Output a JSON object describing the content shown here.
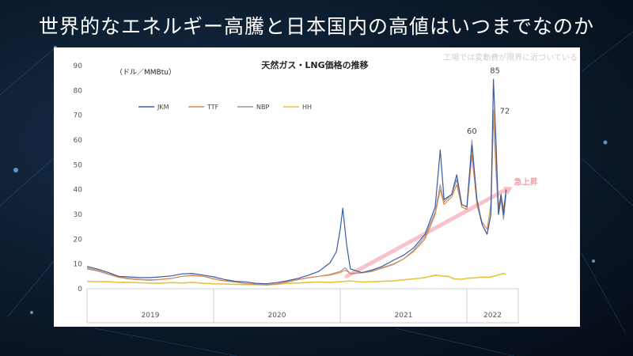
{
  "slide": {
    "title": "世界的なエネルギー高騰と日本国内の高値はいつまでなのか",
    "note": "工場では変動費が限界に近づいている"
  },
  "chart_data": {
    "type": "line",
    "title": "天然ガス・LNG価格の推移",
    "ylabel": "（ドル／MMBtu）",
    "ylim": [
      0,
      90
    ],
    "yticks": [
      0,
      10,
      20,
      30,
      40,
      50,
      60,
      70,
      80,
      90
    ],
    "xlim": [
      2019.0,
      2022.5
    ],
    "years": [
      {
        "label": "2019",
        "start": 2019.0,
        "end": 2020.0
      },
      {
        "label": "2020",
        "start": 2020.0,
        "end": 2021.0
      },
      {
        "label": "2021",
        "start": 2021.0,
        "end": 2022.0
      },
      {
        "label": "2022",
        "start": 2022.0,
        "end": 2022.25
      }
    ],
    "grid": false,
    "legend": "top-left",
    "series": [
      {
        "name": "JKM",
        "color": "#3a5ba8",
        "points": [
          [
            2019.0,
            9.0
          ],
          [
            2019.08,
            8.0
          ],
          [
            2019.17,
            6.5
          ],
          [
            2019.25,
            5.0
          ],
          [
            2019.33,
            4.8
          ],
          [
            2019.42,
            4.5
          ],
          [
            2019.5,
            4.5
          ],
          [
            2019.58,
            4.8
          ],
          [
            2019.67,
            5.2
          ],
          [
            2019.75,
            6.0
          ],
          [
            2019.83,
            6.2
          ],
          [
            2019.92,
            5.5
          ],
          [
            2020.0,
            4.8
          ],
          [
            2020.08,
            3.8
          ],
          [
            2020.17,
            3.0
          ],
          [
            2020.25,
            2.8
          ],
          [
            2020.33,
            2.2
          ],
          [
            2020.42,
            2.0
          ],
          [
            2020.5,
            2.5
          ],
          [
            2020.58,
            3.2
          ],
          [
            2020.67,
            4.2
          ],
          [
            2020.75,
            5.5
          ],
          [
            2020.83,
            7.0
          ],
          [
            2020.92,
            10.5
          ],
          [
            2020.97,
            15.0
          ],
          [
            2021.0,
            24.0
          ],
          [
            2021.02,
            32.5
          ],
          [
            2021.05,
            18.0
          ],
          [
            2021.08,
            8.0
          ],
          [
            2021.17,
            6.5
          ],
          [
            2021.25,
            7.5
          ],
          [
            2021.33,
            9.0
          ],
          [
            2021.42,
            11.5
          ],
          [
            2021.5,
            13.5
          ],
          [
            2021.58,
            16.5
          ],
          [
            2021.67,
            22.0
          ],
          [
            2021.75,
            33.0
          ],
          [
            2021.79,
            56.0
          ],
          [
            2021.82,
            36.0
          ],
          [
            2021.88,
            38.0
          ],
          [
            2021.92,
            46.0
          ],
          [
            2021.96,
            34.0
          ],
          [
            2022.0,
            33.0
          ],
          [
            2022.04,
            58.0
          ],
          [
            2022.08,
            36.0
          ],
          [
            2022.12,
            26.0
          ],
          [
            2022.16,
            22.0
          ],
          [
            2022.19,
            30.0
          ],
          [
            2022.21,
            84.5
          ],
          [
            2022.23,
            60.0
          ],
          [
            2022.25,
            30.0
          ],
          [
            2022.27,
            38.0
          ],
          [
            2022.29,
            30.0
          ],
          [
            2022.31,
            40.0
          ]
        ]
      },
      {
        "name": "TTF",
        "color": "#e08c48",
        "points": [
          [
            2019.0,
            8.5
          ],
          [
            2019.08,
            7.5
          ],
          [
            2019.17,
            6.0
          ],
          [
            2019.25,
            4.8
          ],
          [
            2019.33,
            4.2
          ],
          [
            2019.42,
            3.8
          ],
          [
            2019.5,
            3.6
          ],
          [
            2019.58,
            3.8
          ],
          [
            2019.67,
            4.2
          ],
          [
            2019.75,
            5.0
          ],
          [
            2019.83,
            5.3
          ],
          [
            2019.92,
            5.0
          ],
          [
            2020.0,
            4.0
          ],
          [
            2020.08,
            3.3
          ],
          [
            2020.17,
            2.8
          ],
          [
            2020.25,
            2.2
          ],
          [
            2020.33,
            1.8
          ],
          [
            2020.42,
            1.6
          ],
          [
            2020.5,
            2.0
          ],
          [
            2020.58,
            2.8
          ],
          [
            2020.67,
            3.8
          ],
          [
            2020.75,
            4.5
          ],
          [
            2020.83,
            5.0
          ],
          [
            2020.92,
            5.5
          ],
          [
            2021.0,
            6.5
          ],
          [
            2021.04,
            7.5
          ],
          [
            2021.08,
            6.2
          ],
          [
            2021.17,
            6.5
          ],
          [
            2021.25,
            7.0
          ],
          [
            2021.33,
            8.5
          ],
          [
            2021.42,
            10.0
          ],
          [
            2021.5,
            12.0
          ],
          [
            2021.58,
            15.0
          ],
          [
            2021.67,
            20.0
          ],
          [
            2021.75,
            30.0
          ],
          [
            2021.79,
            40.0
          ],
          [
            2021.82,
            34.0
          ],
          [
            2021.88,
            37.0
          ],
          [
            2021.92,
            42.0
          ],
          [
            2021.96,
            33.0
          ],
          [
            2022.0,
            32.0
          ],
          [
            2022.04,
            54.0
          ],
          [
            2022.08,
            34.0
          ],
          [
            2022.12,
            27.0
          ],
          [
            2022.16,
            24.0
          ],
          [
            2022.19,
            34.0
          ],
          [
            2022.21,
            72.0
          ],
          [
            2022.23,
            52.0
          ],
          [
            2022.25,
            33.0
          ],
          [
            2022.27,
            38.0
          ],
          [
            2022.29,
            32.0
          ],
          [
            2022.31,
            40.0
          ]
        ]
      },
      {
        "name": "NBP",
        "color": "#9b9b9b",
        "points": [
          [
            2019.0,
            8.0
          ],
          [
            2019.08,
            7.2
          ],
          [
            2019.17,
            5.8
          ],
          [
            2019.25,
            4.6
          ],
          [
            2019.33,
            4.0
          ],
          [
            2019.42,
            3.6
          ],
          [
            2019.5,
            3.4
          ],
          [
            2019.58,
            3.7
          ],
          [
            2019.67,
            4.2
          ],
          [
            2019.75,
            5.0
          ],
          [
            2019.83,
            5.5
          ],
          [
            2019.92,
            5.0
          ],
          [
            2020.0,
            4.0
          ],
          [
            2020.08,
            3.2
          ],
          [
            2020.17,
            2.7
          ],
          [
            2020.25,
            2.1
          ],
          [
            2020.33,
            1.7
          ],
          [
            2020.42,
            1.5
          ],
          [
            2020.5,
            1.9
          ],
          [
            2020.58,
            2.7
          ],
          [
            2020.67,
            3.7
          ],
          [
            2020.75,
            4.4
          ],
          [
            2020.83,
            5.0
          ],
          [
            2020.92,
            5.8
          ],
          [
            2021.0,
            7.0
          ],
          [
            2021.04,
            8.5
          ],
          [
            2021.08,
            6.0
          ],
          [
            2021.17,
            6.4
          ],
          [
            2021.25,
            7.0
          ],
          [
            2021.33,
            8.3
          ],
          [
            2021.42,
            9.8
          ],
          [
            2021.5,
            12.0
          ],
          [
            2021.58,
            15.5
          ],
          [
            2021.67,
            21.0
          ],
          [
            2021.75,
            31.0
          ],
          [
            2021.79,
            42.0
          ],
          [
            2021.82,
            35.0
          ],
          [
            2021.88,
            38.0
          ],
          [
            2021.92,
            44.0
          ],
          [
            2021.96,
            33.0
          ],
          [
            2022.0,
            32.0
          ],
          [
            2022.04,
            60.0
          ],
          [
            2022.08,
            34.0
          ],
          [
            2022.12,
            26.0
          ],
          [
            2022.16,
            22.0
          ],
          [
            2022.19,
            30.0
          ],
          [
            2022.21,
            70.0
          ],
          [
            2022.23,
            48.0
          ],
          [
            2022.25,
            30.0
          ],
          [
            2022.27,
            36.0
          ],
          [
            2022.29,
            28.0
          ],
          [
            2022.31,
            38.0
          ]
        ]
      },
      {
        "name": "HH",
        "color": "#e8c23a",
        "points": [
          [
            2019.0,
            3.0
          ],
          [
            2019.08,
            2.9
          ],
          [
            2019.17,
            2.8
          ],
          [
            2019.25,
            2.6
          ],
          [
            2019.33,
            2.6
          ],
          [
            2019.42,
            2.4
          ],
          [
            2019.5,
            2.3
          ],
          [
            2019.58,
            2.2
          ],
          [
            2019.67,
            2.5
          ],
          [
            2019.75,
            2.3
          ],
          [
            2019.83,
            2.6
          ],
          [
            2019.92,
            2.2
          ],
          [
            2020.0,
            2.0
          ],
          [
            2020.08,
            1.9
          ],
          [
            2020.17,
            1.8
          ],
          [
            2020.25,
            1.7
          ],
          [
            2020.33,
            1.7
          ],
          [
            2020.42,
            1.6
          ],
          [
            2020.5,
            1.8
          ],
          [
            2020.58,
            2.2
          ],
          [
            2020.67,
            2.3
          ],
          [
            2020.75,
            2.6
          ],
          [
            2020.83,
            2.7
          ],
          [
            2020.92,
            2.6
          ],
          [
            2021.0,
            2.8
          ],
          [
            2021.08,
            3.2
          ],
          [
            2021.17,
            2.7
          ],
          [
            2021.25,
            2.8
          ],
          [
            2021.33,
            3.0
          ],
          [
            2021.42,
            3.2
          ],
          [
            2021.5,
            3.6
          ],
          [
            2021.58,
            4.0
          ],
          [
            2021.67,
            4.5
          ],
          [
            2021.75,
            5.5
          ],
          [
            2021.8,
            5.2
          ],
          [
            2021.85,
            5.0
          ],
          [
            2021.9,
            4.0
          ],
          [
            2021.96,
            3.8
          ],
          [
            2022.0,
            4.2
          ],
          [
            2022.08,
            4.5
          ],
          [
            2022.12,
            4.7
          ],
          [
            2022.17,
            4.6
          ],
          [
            2022.21,
            5.0
          ],
          [
            2022.25,
            5.6
          ],
          [
            2022.29,
            6.2
          ],
          [
            2022.31,
            5.8
          ]
        ]
      }
    ],
    "annotations": [
      {
        "text": "85",
        "x": 2022.21,
        "y": 85
      },
      {
        "text": "72",
        "x": 2022.21,
        "y": 72
      },
      {
        "text": "60",
        "x": 2022.04,
        "y": 60
      },
      {
        "text": "急上昇",
        "x": 2022.36,
        "y": 41
      }
    ],
    "trend_arrow": {
      "from": [
        2021.05,
        5
      ],
      "to": [
        2022.36,
        41
      ],
      "color": "#f6b8bf"
    }
  }
}
